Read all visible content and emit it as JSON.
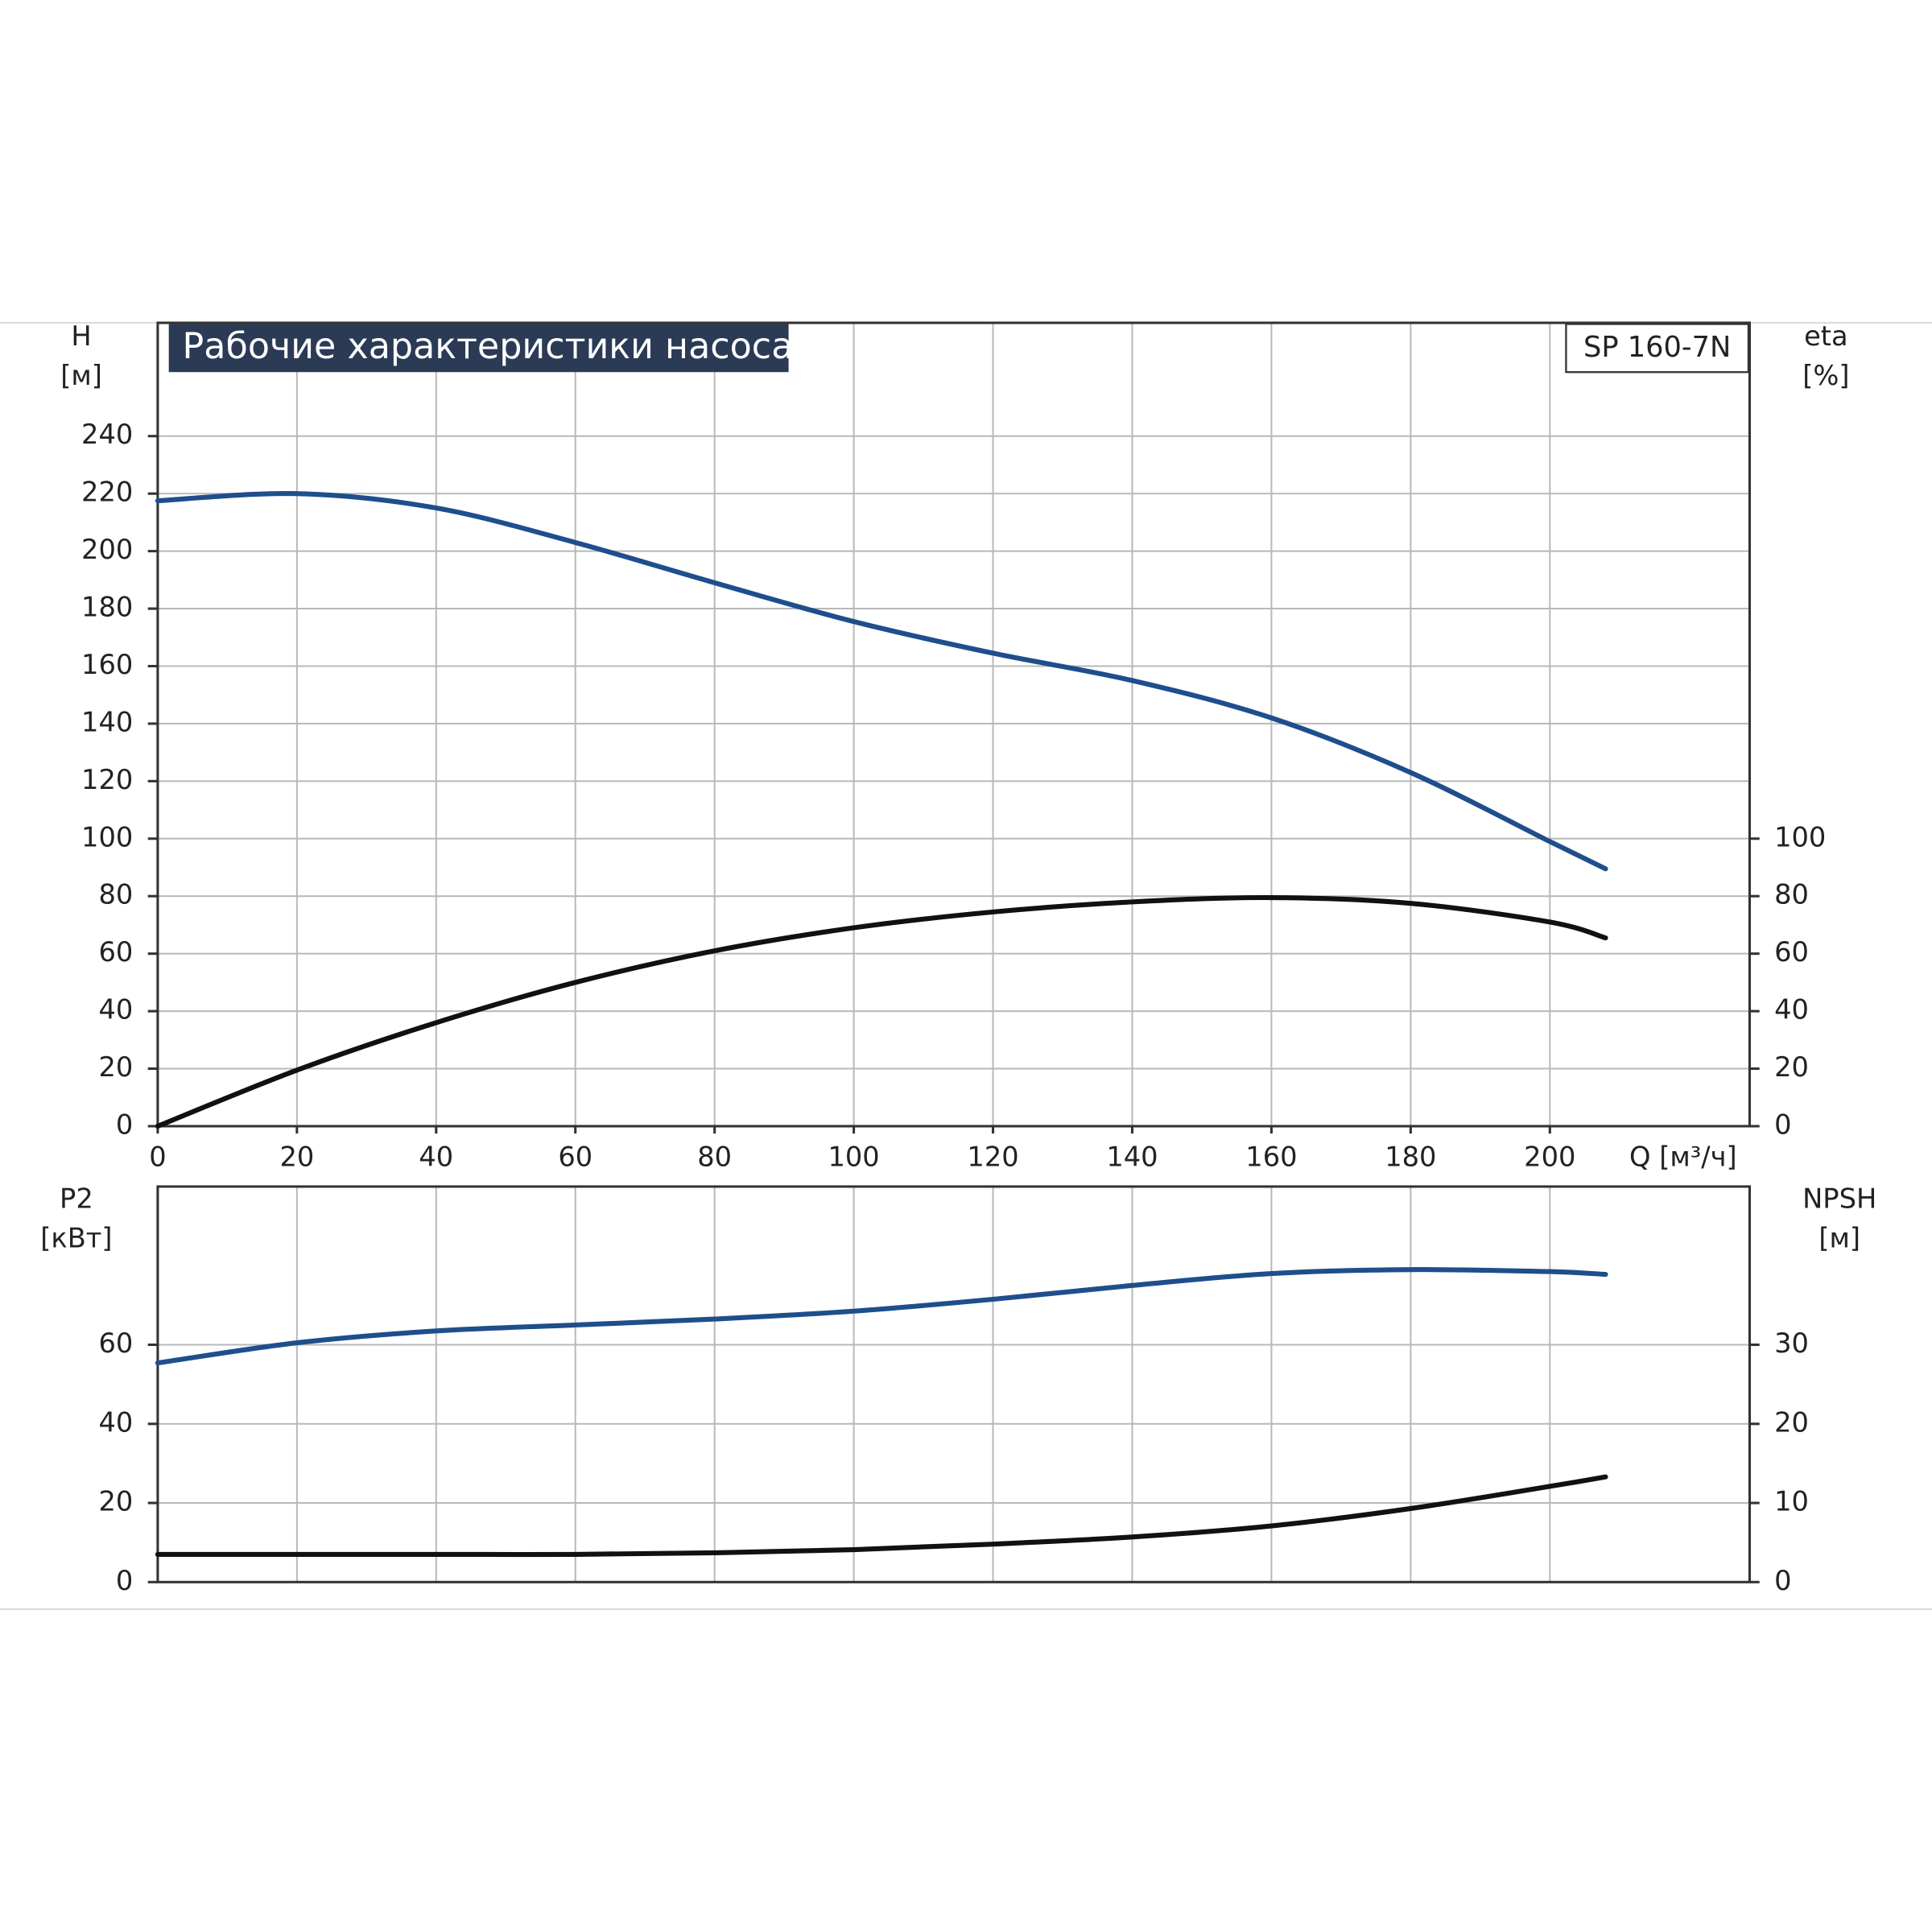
{
  "chart_data": [
    {
      "type": "line",
      "title": "Рабочие характеристики насоса",
      "annotation": "SP 160-7N",
      "ylabel": "H",
      "yunit": "[м]",
      "y2label": "eta",
      "y2unit": "[%]",
      "xlabel": "Q [м³/ч]",
      "x": [
        0,
        20,
        40,
        60,
        80,
        100,
        120,
        140,
        160,
        180,
        200,
        208
      ],
      "xlim": [
        0,
        228.7
      ],
      "xticks": [
        0,
        20,
        40,
        60,
        80,
        100,
        120,
        140,
        160,
        180,
        200
      ],
      "ylim": [
        0,
        279.4
      ],
      "yticks": [
        0,
        20,
        40,
        60,
        80,
        100,
        120,
        140,
        160,
        180,
        200,
        220,
        240
      ],
      "y2lim": [
        0,
        279.4
      ],
      "y2ticks": [
        0,
        20,
        40,
        60,
        80,
        100
      ],
      "grid": true,
      "series": [
        {
          "color": "#1f4e8c",
          "values": [
            217.5,
            220,
            215,
            203,
            189,
            175.5,
            164.5,
            155,
            142,
            123,
            99,
            89.5
          ]
        },
        {
          "color": "#111111",
          "axis": "y2",
          "values": [
            0,
            19.5,
            36,
            50,
            61,
            69,
            74.5,
            78,
            79.5,
            77.5,
            71,
            65.5
          ]
        }
      ]
    },
    {
      "type": "line",
      "ylabel": "P2",
      "yunit": "[кВт]",
      "y2label": "NPSH",
      "y2unit": "[м]",
      "x": [
        0,
        20,
        40,
        60,
        80,
        100,
        120,
        140,
        160,
        180,
        200,
        208
      ],
      "xlim": [
        0,
        228.7
      ],
      "ylim": [
        0,
        100
      ],
      "yticks": [
        0,
        20,
        40,
        60
      ],
      "y2lim": [
        0,
        50
      ],
      "y2ticks": [
        0,
        10,
        20,
        30
      ],
      "grid": true,
      "series": [
        {
          "color": "#1f4e8c",
          "values": [
            55.4,
            60.5,
            63.5,
            65,
            66.5,
            68.5,
            71.5,
            75,
            78,
            79,
            78.5,
            77.8
          ]
        },
        {
          "color": "#111111",
          "axis": "y2",
          "values": [
            3.5,
            3.5,
            3.5,
            3.5,
            3.7,
            4.1,
            4.8,
            5.7,
            7.1,
            9.3,
            12.1,
            13.3
          ]
        }
      ]
    }
  ]
}
